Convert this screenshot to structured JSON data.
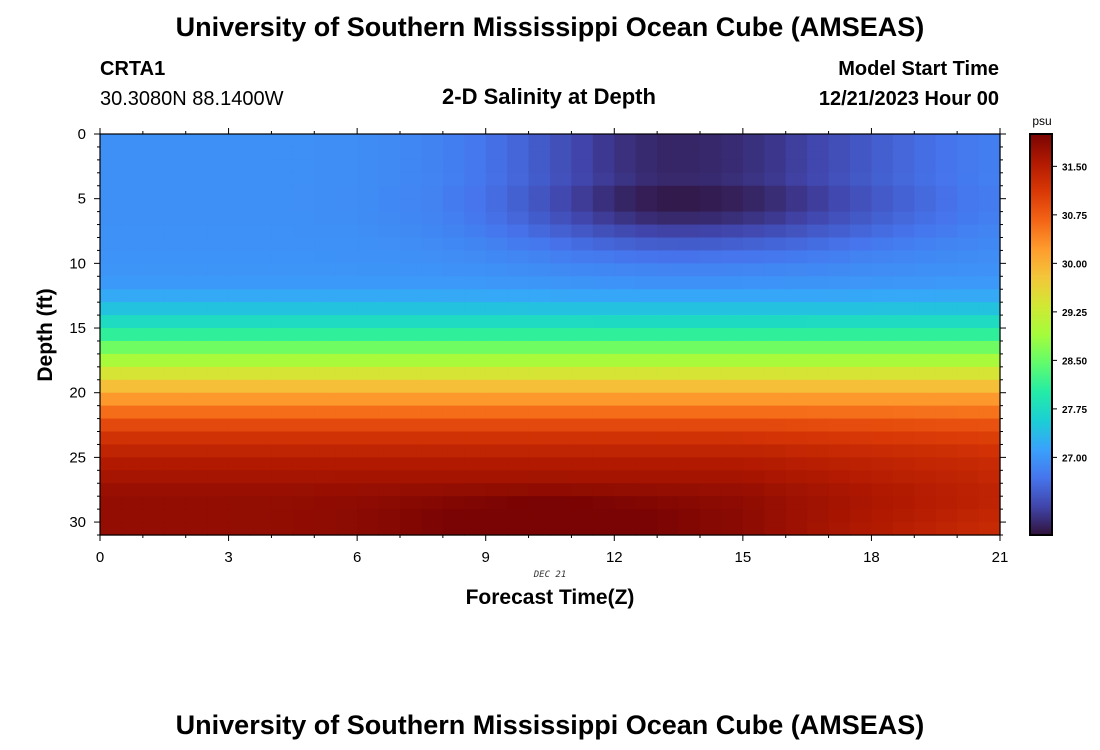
{
  "header": {
    "title": "University of Southern Mississippi Ocean Cube (AMSEAS)",
    "station_id": "CRTA1",
    "coordinates": "30.3080N  88.1400W",
    "plot_title": "2-D Salinity at Depth",
    "model_start_label": "Model Start Time",
    "model_start_value": "12/21/2023 Hour 00"
  },
  "footer": {
    "title": "University of Southern Mississippi Ocean Cube (AMSEAS)"
  },
  "colors": {
    "colormap": [
      "#30123b",
      "#4145ab",
      "#4675ed",
      "#39a2fc",
      "#1bcfd4",
      "#24eca6",
      "#61fc6c",
      "#a4fc3b",
      "#d1e834",
      "#f3c63a",
      "#fe9b2d",
      "#f36315",
      "#d93806",
      "#b11901",
      "#7a0403"
    ]
  },
  "chart_data": {
    "type": "heatmap",
    "title": "2-D Salinity at Depth",
    "xlabel": "Forecast Time(Z)",
    "ylabel": "Depth (ft)",
    "x_sublabel": "DEC 21",
    "xlim": [
      0,
      21
    ],
    "ylim": [
      0,
      31
    ],
    "x_ticks": [
      0,
      3,
      6,
      9,
      12,
      15,
      18,
      21
    ],
    "y_ticks": [
      0,
      5,
      10,
      15,
      20,
      25,
      30
    ],
    "colorbar": {
      "unit": "psu",
      "min": 25.8,
      "max": 32.0,
      "ticks": [
        "27.00",
        "27.75",
        "28.50",
        "29.25",
        "30.00",
        "30.75",
        "31.50"
      ]
    },
    "x_steps": 42,
    "depths": [
      0,
      1,
      2,
      3,
      4,
      5,
      6,
      7,
      8,
      9,
      10,
      11,
      12,
      13,
      14,
      15,
      16,
      17,
      18,
      19,
      20,
      21,
      22,
      23,
      24,
      25,
      26,
      27,
      28,
      29,
      30
    ],
    "base_profile": [
      26.95,
      26.95,
      26.95,
      26.95,
      26.95,
      26.95,
      26.95,
      26.96,
      26.97,
      26.98,
      27.0,
      27.05,
      27.2,
      27.45,
      27.75,
      28.1,
      28.55,
      28.95,
      29.4,
      29.85,
      30.25,
      30.6,
      30.95,
      31.2,
      31.4,
      31.55,
      31.65,
      31.75,
      31.8,
      31.8,
      31.8
    ],
    "fresh_anomaly": {
      "center_time": 13.5,
      "time_spread": 4.0,
      "time_spread_late": 5.5,
      "center_depth": 4.5,
      "depth_spread": 4.0,
      "amplitude": -1.1
    },
    "salty_anomaly": {
      "center_time": 10.5,
      "time_spread": 3.5,
      "center_depth": 29.5,
      "depth_spread": 2.0,
      "amplitude": 0.35
    },
    "late_surface_gradient": 0.5
  }
}
